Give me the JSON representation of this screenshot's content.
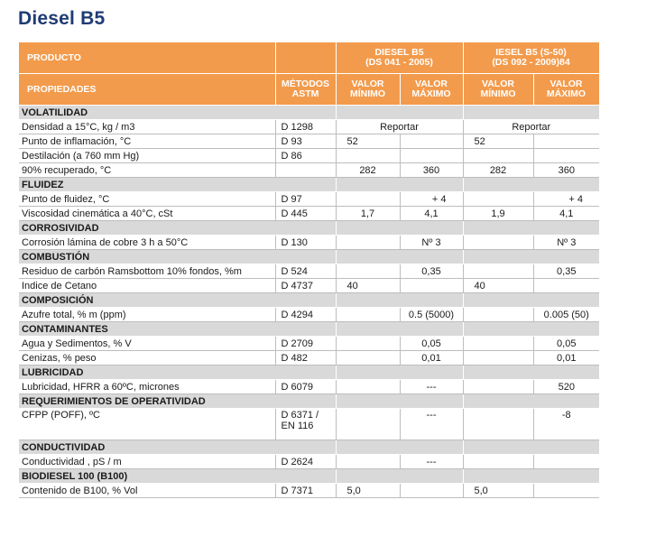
{
  "title": "Diesel B5",
  "header": {
    "producto": "PRODUCTO",
    "propiedades": "PROPIEDADES",
    "metodos_line1": "MÉTODOS",
    "metodos_line2": "ASTM",
    "diesel_b5_line1": "DIESEL B5",
    "diesel_b5_line2": "(DS 041 - 2005)",
    "iesel_b5_line1": "IESEL B5 (S-50)",
    "iesel_b5_line2": "(DS 092 - 2009)84",
    "valor": "VALOR",
    "minimo": "MÍNIMO",
    "maximo": "MÁXIMO"
  },
  "sections": {
    "volatilidad": "VOLATILIDAD",
    "fluidez": "FLUIDEZ",
    "corrosividad": "CORROSIVIDAD",
    "combustion": "COMBUSTIÓN",
    "composicion": "COMPOSICIÓN",
    "contaminantes": "CONTAMINANTES",
    "lubricidad": "LUBRICIDAD",
    "operatividad": "REQUERIMIENTOS DE OPERATIVIDAD",
    "conductividad": "CONDUCTIVIDAD",
    "biodiesel": "BIODIESEL 100 (B100)"
  },
  "rows": {
    "densidad": {
      "prop": "Densidad a 15°C, kg / m3",
      "method": "D 1298",
      "rep1": "Reportar",
      "rep2": "Reportar"
    },
    "inflamacion": {
      "prop": "Punto de inflamación, °C",
      "method": "D 93",
      "min1": "52",
      "min2": "52"
    },
    "destilacion": {
      "prop": "Destilación (a 760 mm Hg)",
      "method": "D 86"
    },
    "recuperado": {
      "prop": "90% recuperado, °C",
      "min1": "282",
      "max1": "360",
      "min2": "282",
      "max2": "360"
    },
    "fluidez": {
      "prop": "Punto de fluidez, °C",
      "method": "D 97",
      "max1": "+ 4",
      "max2": "+ 4"
    },
    "viscosidad": {
      "prop": "Viscosidad cinemática a 40°C, cSt",
      "method": "D 445",
      "min1": "1,7",
      "max1": "4,1",
      "min2": "1,9",
      "max2": "4,1"
    },
    "corrosion": {
      "prop": "Corrosión lámina de cobre 3 h a 50°C",
      "method": "D 130",
      "max1": "Nº 3",
      "max2": "Nº 3"
    },
    "carbon": {
      "prop": "Residuo de carbón Ramsbottom 10% fondos, %m",
      "method": "D 524",
      "max1": "0,35",
      "max2": "0,35"
    },
    "cetano": {
      "prop": "Indice de Cetano",
      "method": "D 4737",
      "min1": "40",
      "min2": "40"
    },
    "azufre": {
      "prop": "Azufre total, % m (ppm)",
      "method": "D 4294",
      "max1": "0.5 (5000)",
      "max2": "0.005 (50)"
    },
    "agua": {
      "prop": "Agua y Sedimentos, % V",
      "method": "D 2709",
      "max1": "0,05",
      "max2": "0,05"
    },
    "cenizas": {
      "prop": "Cenizas, % peso",
      "method": "D 482",
      "max1": "0,01",
      "max2": "0,01"
    },
    "lubricidad": {
      "prop": "Lubricidad, HFRR a 60ºC, micrones",
      "method": "D 6079",
      "max1": "---",
      "max2": "520"
    },
    "cfpp": {
      "prop": "CFPP (POFF), ºC",
      "method_line1": "D 6371 /",
      "method_line2": "EN 116",
      "max1": "---",
      "max2": "-8"
    },
    "conductividad": {
      "prop": "Conductividad , pS / m",
      "method": "D 2624",
      "max1": "---"
    },
    "b100": {
      "prop": "Contenido de B100, % Vol",
      "method": "D 7371",
      "min1": "5,0",
      "min2": "5,0"
    }
  },
  "colors": {
    "header_orange": "#f39b4c",
    "section_gray": "#d9d9d9",
    "title_blue": "#1f3b73"
  }
}
